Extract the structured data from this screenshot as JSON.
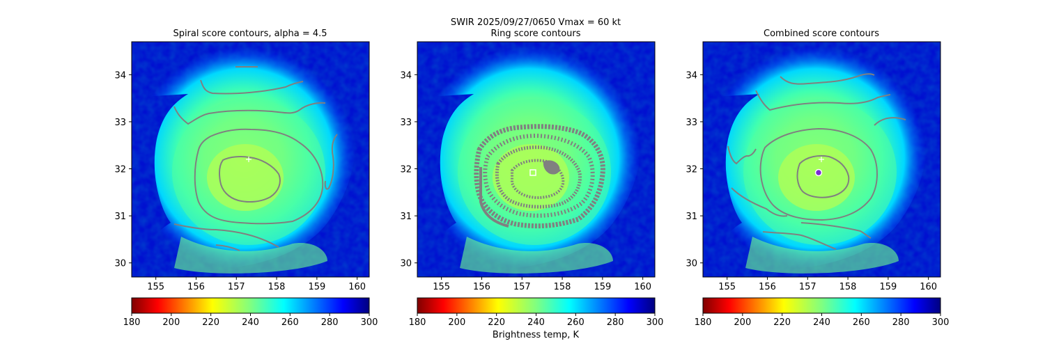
{
  "suptitle": "SWIR  2025/09/27/0650    Vmax = 60 kt",
  "colorbar_label": "Brightness temp, K",
  "colormap": "jet_reversed",
  "contour_color": "#808080",
  "marker_color": "#ffffff",
  "chart_data": [
    {
      "type": "heatmap",
      "title": "Spiral score contours, alpha =  4.5",
      "xlim": [
        154.4,
        160.3
      ],
      "ylim": [
        29.7,
        34.7
      ],
      "xticks": [
        "155",
        "156",
        "157",
        "158",
        "159",
        "160"
      ],
      "yticks": [
        "30",
        "31",
        "32",
        "33",
        "34"
      ],
      "colorbar": {
        "range": [
          180,
          300
        ],
        "ticks": [
          "180",
          "200",
          "220",
          "240",
          "260",
          "280",
          "300"
        ]
      },
      "markers": [
        {
          "kind": "plus",
          "lon": 157.3,
          "lat": 32.2
        }
      ],
      "storm_center": [
        157.3,
        31.9
      ]
    },
    {
      "type": "heatmap",
      "title": "Ring score contours",
      "xlim": [
        154.4,
        160.3
      ],
      "ylim": [
        29.7,
        34.7
      ],
      "xticks": [
        "155",
        "156",
        "157",
        "158",
        "159",
        "160"
      ],
      "yticks": [
        "30",
        "31",
        "32",
        "33",
        "34"
      ],
      "colorbar": {
        "range": [
          180,
          300
        ],
        "ticks": [
          "180",
          "200",
          "220",
          "240",
          "260",
          "280",
          "300"
        ]
      },
      "markers": [
        {
          "kind": "square",
          "lon": 157.25,
          "lat": 31.88
        }
      ],
      "storm_center": [
        157.3,
        31.9
      ]
    },
    {
      "type": "heatmap",
      "title": "Combined score contours",
      "xlim": [
        154.4,
        160.3
      ],
      "ylim": [
        29.7,
        34.7
      ],
      "xticks": [
        "155",
        "156",
        "157",
        "158",
        "159",
        "160"
      ],
      "yticks": [
        "30",
        "31",
        "32",
        "33",
        "34"
      ],
      "colorbar": {
        "range": [
          180,
          300
        ],
        "ticks": [
          "180",
          "200",
          "220",
          "240",
          "260",
          "280",
          "300"
        ]
      },
      "markers": [
        {
          "kind": "plus",
          "lon": 157.3,
          "lat": 32.2
        },
        {
          "kind": "circle",
          "lon": 157.25,
          "lat": 31.88
        }
      ],
      "storm_center": [
        157.3,
        31.9
      ]
    }
  ]
}
